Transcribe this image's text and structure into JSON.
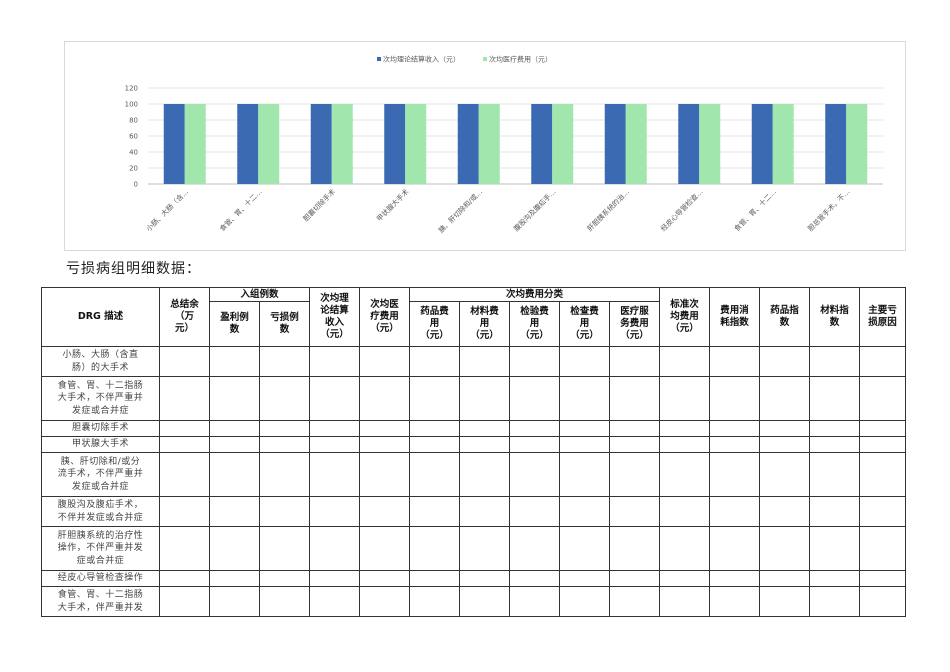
{
  "chart_data": {
    "type": "bar",
    "legend_position": "top",
    "gridlines": true,
    "ylim": [
      0,
      120
    ],
    "yticks": [
      "0",
      "20",
      "40",
      "60",
      "80",
      "100",
      "120"
    ],
    "categories": [
      "小肠、大肠（含…",
      "食管、胃、十二…",
      "胆囊切除手术",
      "甲状腺大手术",
      "胰、肝切除和/或…",
      "腹股沟及腹疝手…",
      "肝胆胰系统的治…",
      "经皮心导管检查…",
      "食管、胃、十二…",
      "胆总管手术，不…"
    ],
    "series": [
      {
        "name": "次均理论结算收入（元）",
        "color": "#3b6ab2",
        "values": [
          100,
          100,
          100,
          100,
          100,
          100,
          100,
          100,
          100,
          100
        ]
      },
      {
        "name": "次均医疗费用（元）",
        "color": "#a1e6ad",
        "values": [
          100,
          100,
          100,
          100,
          100,
          100,
          100,
          100,
          100,
          100
        ]
      }
    ]
  },
  "section_title": "亏损病组明细数据：",
  "table": {
    "headers": {
      "drg": "DRG 描述",
      "total": [
        "总结余",
        "（万",
        "元）"
      ],
      "group_cases": "入组例数",
      "profit_cases": [
        "盈利例",
        "数"
      ],
      "loss_cases": [
        "亏损例",
        "数"
      ],
      "avg_theory": [
        "次均理",
        "论结算",
        "收入",
        "（元）"
      ],
      "avg_medical": [
        "次均医",
        "疗费用",
        "（元）"
      ],
      "avg_breakdown": "次均费用分类",
      "drug": [
        "药品费",
        "用",
        "（元）"
      ],
      "material": [
        "材料费",
        "用",
        "（元）"
      ],
      "inspection": [
        "检验费",
        "用",
        "（元）"
      ],
      "examination": [
        "检查费",
        "用",
        "（元）"
      ],
      "service": [
        "医疗服",
        "务费用",
        "（元）"
      ],
      "standard": [
        "标准次",
        "均费用",
        "（元）"
      ],
      "cost_index": [
        "费用消",
        "耗指数"
      ],
      "drug_index": [
        "药品指",
        "数"
      ],
      "material_index": [
        "材料指",
        "数"
      ],
      "reason": [
        "主要亏",
        "损原因"
      ]
    },
    "rows": [
      [
        "小肠、大肠（含直",
        "肠）的大手术"
      ],
      [
        "食管、胃、十二指肠",
        "大手术，不伴严重并",
        "发症或合并症"
      ],
      [
        "胆囊切除手术"
      ],
      [
        "甲状腺大手术"
      ],
      [
        "胰、肝切除和/或分",
        "流手术，不伴严重并",
        "发症或合并症"
      ],
      [
        "腹股沟及腹疝手术，",
        "不伴并发症或合并症"
      ],
      [
        "肝胆胰系统的治疗性",
        "操作，不伴严重并发",
        "症或合并症"
      ],
      [
        "经皮心导管检查操作"
      ],
      [
        "食管、胃、十二指肠",
        "大手术，伴严重并发"
      ]
    ]
  }
}
